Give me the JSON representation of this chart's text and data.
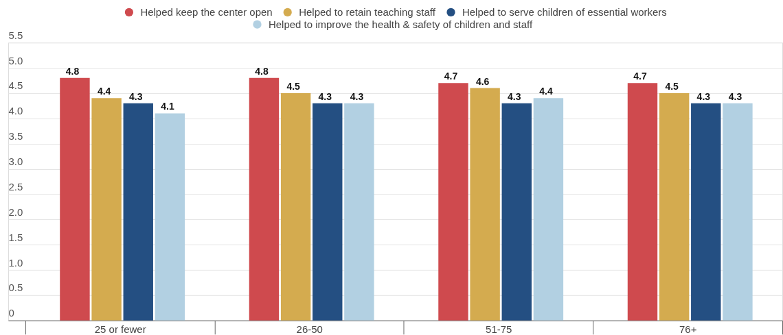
{
  "chart_data": {
    "type": "bar",
    "categories": [
      "25 or fewer",
      "26-50",
      "51-75",
      "76+"
    ],
    "series": [
      {
        "name": "Helped keep the center open",
        "color": "#cf4a4e",
        "values": [
          4.8,
          4.8,
          4.7,
          4.7
        ]
      },
      {
        "name": "Helped to retain teaching staff",
        "color": "#d4ab4f",
        "values": [
          4.4,
          4.5,
          4.6,
          4.5
        ]
      },
      {
        "name": "Helped to serve children of essential workers",
        "color": "#244f82",
        "values": [
          4.3,
          4.3,
          4.3,
          4.3
        ]
      },
      {
        "name": "Helped to improve the health & safety of children and staff",
        "color": "#b2d0e2",
        "values": [
          4.1,
          4.3,
          4.4,
          4.3
        ]
      }
    ],
    "ylim": [
      0,
      5.5
    ],
    "yticks": [
      0,
      0.5,
      {
        "value": 1,
        "label": "1.0"
      },
      1.5,
      {
        "value": 2,
        "label": "2.0"
      },
      2.5,
      {
        "value": 3,
        "label": "3.0"
      },
      3.5,
      {
        "value": 4,
        "label": "4.0"
      },
      4.5,
      {
        "value": 5,
        "label": "5.0"
      },
      5.5
    ],
    "grid": "y",
    "legend": "top",
    "data_labels": true
  }
}
